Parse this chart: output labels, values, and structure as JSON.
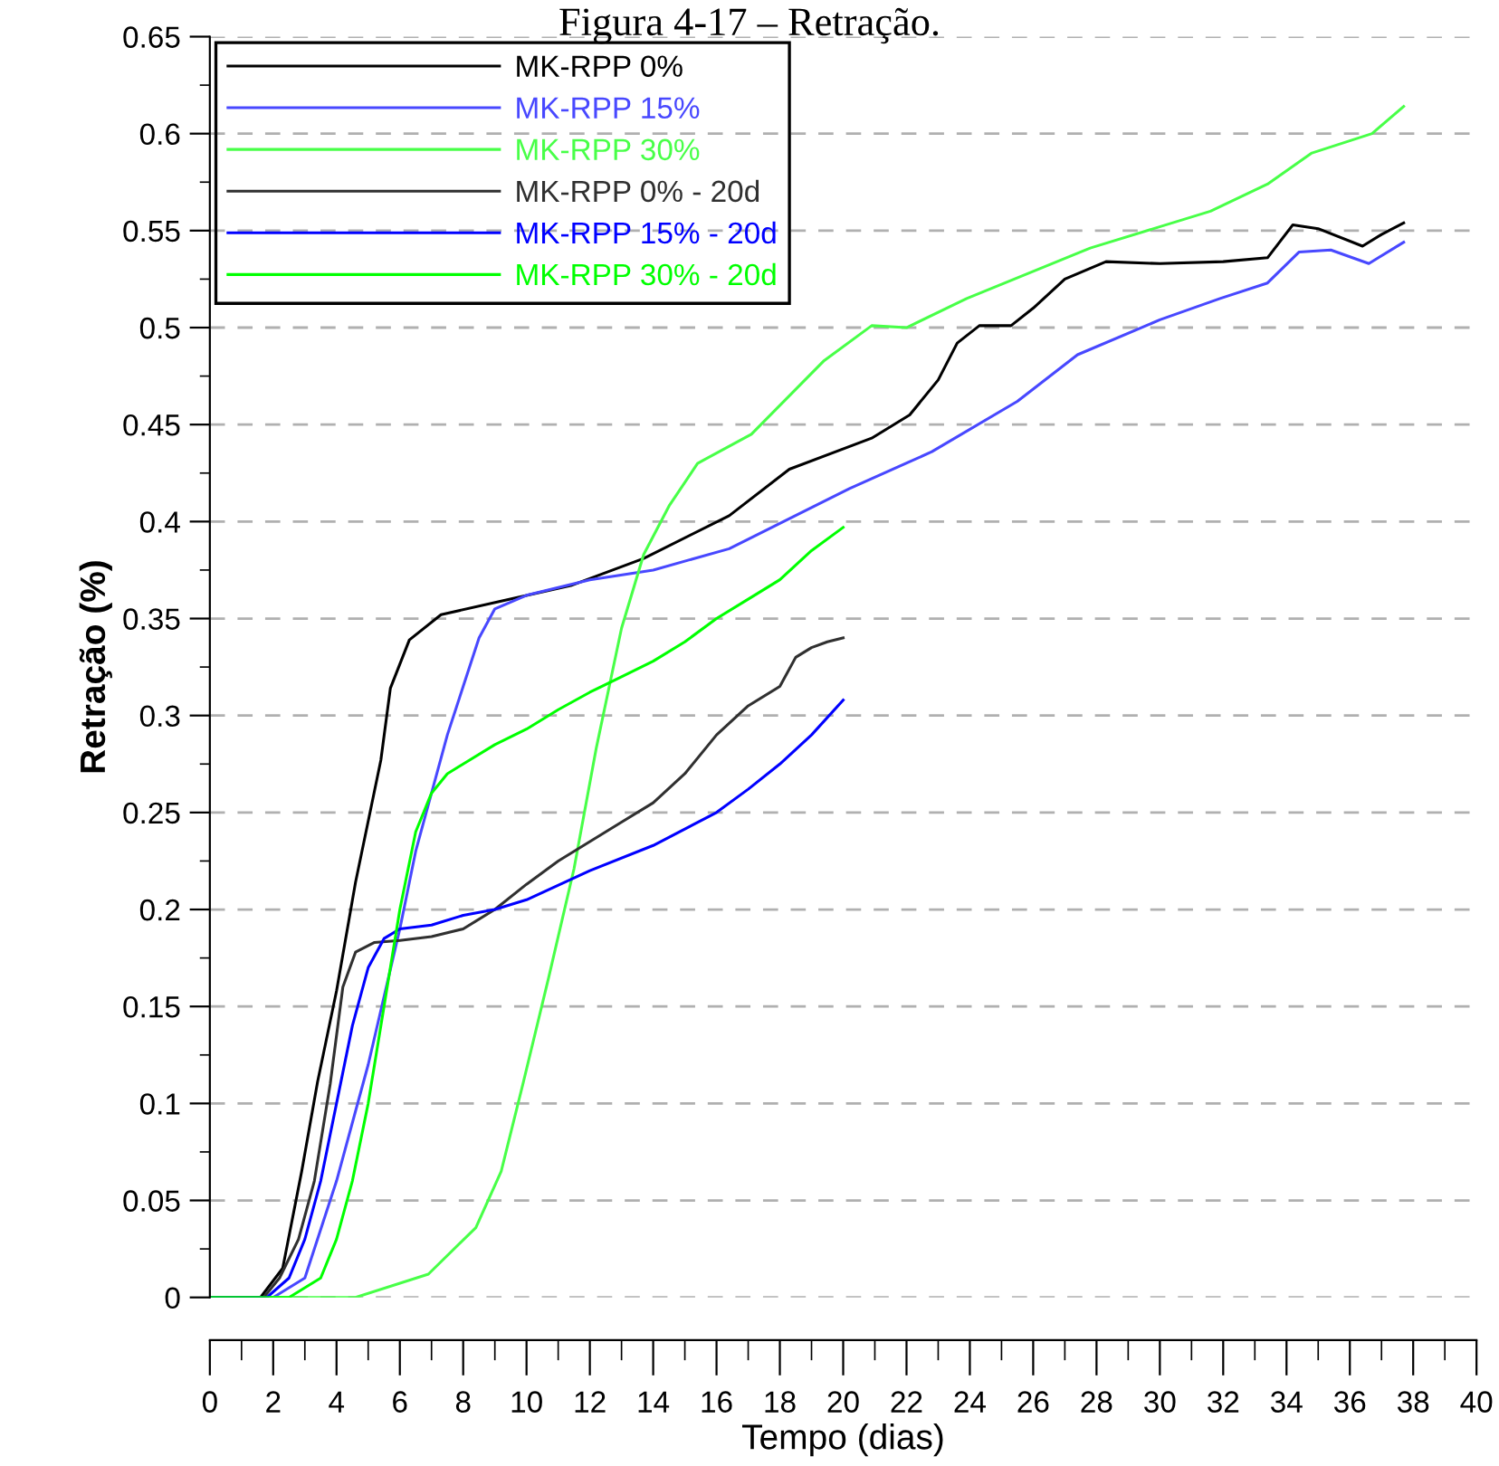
{
  "chart_data": {
    "type": "line",
    "title": "Figura 4-17 – Retração.",
    "xlabel": "Tempo (dias)",
    "ylabel": "Retração (%)",
    "xlim": [
      0,
      40
    ],
    "xticks": [
      0,
      2,
      4,
      6,
      8,
      10,
      12,
      14,
      16,
      18,
      20,
      22,
      24,
      26,
      28,
      30,
      32,
      34,
      36,
      38,
      40
    ],
    "ylim": [
      0,
      0.65
    ],
    "yticks": [
      0,
      0.05,
      0.1,
      0.15,
      0.2,
      0.25,
      0.3,
      0.35,
      0.4,
      0.45,
      0.5,
      0.55,
      0.6,
      0.65
    ],
    "grid": "y",
    "legend": "top left",
    "line_style": "solid",
    "marker": "none",
    "series": [
      {
        "name": "MK-RPP 0%",
        "color": "#000000",
        "x": [
          0,
          1.6,
          2.3,
          2.9,
          3.4,
          4.0,
          4.6,
          5.4,
          5.7,
          6.3,
          7.3,
          9.2,
          11.4,
          13.7,
          16.4,
          18.3,
          20.9,
          22.1,
          23.0,
          23.6,
          24.3,
          25.3,
          26.0,
          27.0,
          28.3,
          30.0,
          32.0,
          33.4,
          34.2,
          35.0,
          36.4,
          37.0,
          37.7
        ],
        "values": [
          0,
          0,
          0.015,
          0.065,
          0.111,
          0.158,
          0.214,
          0.277,
          0.314,
          0.339,
          0.352,
          0.359,
          0.367,
          0.381,
          0.403,
          0.427,
          0.443,
          0.455,
          0.473,
          0.492,
          0.501,
          0.501,
          0.51,
          0.525,
          0.534,
          0.533,
          0.534,
          0.536,
          0.553,
          0.551,
          0.542,
          0.548,
          0.554
        ]
      },
      {
        "name": "MK-RPP 15%",
        "color": "#4848ff",
        "x": [
          0,
          2.0,
          3.0,
          4.0,
          5.0,
          6.0,
          6.5,
          7.0,
          7.5,
          8.0,
          8.5,
          9.0,
          10,
          12,
          14,
          16.4,
          20.2,
          22.8,
          25.5,
          27.4,
          30.0,
          31.9,
          33.4,
          34.4,
          35.4,
          36.6,
          37.7
        ],
        "values": [
          0,
          0,
          0.01,
          0.06,
          0.12,
          0.19,
          0.23,
          0.26,
          0.29,
          0.315,
          0.34,
          0.355,
          0.362,
          0.37,
          0.375,
          0.386,
          0.417,
          0.436,
          0.462,
          0.486,
          0.504,
          0.515,
          0.523,
          0.539,
          0.54,
          0.533,
          0.544
        ]
      },
      {
        "name": "MK-RPP 30%",
        "color": "#48ff48",
        "x": [
          0,
          4.6,
          6.9,
          8.4,
          9.2,
          9.9,
          10.7,
          11.5,
          12.2,
          13.0,
          13.7,
          14.5,
          15.4,
          17.1,
          19.4,
          20.9,
          22.0,
          23.9,
          27.8,
          31.6,
          33.4,
          34.8,
          36.7,
          37.7
        ],
        "values": [
          0,
          0,
          0.012,
          0.036,
          0.065,
          0.111,
          0.165,
          0.221,
          0.283,
          0.345,
          0.383,
          0.408,
          0.43,
          0.445,
          0.483,
          0.501,
          0.5,
          0.515,
          0.541,
          0.56,
          0.574,
          0.59,
          0.6,
          0.614
        ]
      },
      {
        "name": "MK-RPP 0% - 20d",
        "color": "#303030",
        "x": [
          0,
          1.7,
          2.2,
          2.8,
          3.3,
          3.8,
          4.2,
          4.6,
          5.2,
          6,
          7,
          8,
          9,
          10,
          11,
          12,
          13,
          14,
          15,
          16,
          17,
          18,
          18.5,
          19,
          19.5,
          20
        ],
        "values": [
          0,
          0,
          0.01,
          0.03,
          0.06,
          0.11,
          0.16,
          0.178,
          0.183,
          0.184,
          0.186,
          0.19,
          0.2,
          0.213,
          0.225,
          0.235,
          0.245,
          0.255,
          0.27,
          0.29,
          0.305,
          0.315,
          0.33,
          0.335,
          0.338,
          0.34
        ]
      },
      {
        "name": "MK-RPP 15% - 20d",
        "color": "#0000ff",
        "x": [
          0,
          1.8,
          2.5,
          3.0,
          3.5,
          4,
          4.5,
          5,
          5.5,
          6,
          7,
          8,
          9,
          10,
          12,
          14,
          16,
          17,
          18,
          19,
          20
        ],
        "values": [
          0,
          0,
          0.01,
          0.03,
          0.06,
          0.1,
          0.14,
          0.17,
          0.185,
          0.19,
          0.192,
          0.197,
          0.2,
          0.205,
          0.22,
          0.233,
          0.25,
          0.262,
          0.275,
          0.29,
          0.308
        ]
      },
      {
        "name": "MK-RPP 30% - 20d",
        "color": "#00ff00",
        "x": [
          0,
          2.5,
          3.5,
          4,
          4.5,
          5,
          5.5,
          6,
          6.5,
          7,
          7.5,
          8,
          9,
          10,
          11,
          12,
          13,
          14,
          15,
          16,
          17,
          18,
          19,
          20
        ],
        "values": [
          0,
          0,
          0.01,
          0.03,
          0.06,
          0.1,
          0.15,
          0.2,
          0.24,
          0.26,
          0.27,
          0.275,
          0.285,
          0.293,
          0.303,
          0.312,
          0.32,
          0.328,
          0.338,
          0.35,
          0.36,
          0.37,
          0.385,
          0.397
        ]
      }
    ]
  }
}
